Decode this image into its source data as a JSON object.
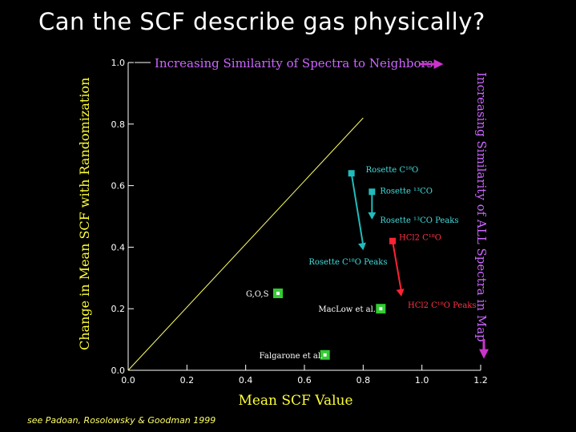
{
  "slide": {
    "title": "Can the SCF describe gas physically?",
    "footnote": "see Padoan, Rosolowsky & Goodman 1999"
  },
  "chart_data": {
    "type": "scatter",
    "xlabel": "Mean SCF Value",
    "ylabel": "Change in Mean SCF with Randomization",
    "xlim": [
      0.0,
      1.2
    ],
    "ylim": [
      0.0,
      1.0
    ],
    "xticks": [
      0.0,
      0.2,
      0.4,
      0.6,
      0.8,
      1.0,
      1.2
    ],
    "yticks": [
      0.0,
      0.2,
      0.4,
      0.6,
      0.8,
      1.0
    ],
    "xtick_labels": [
      "0.0",
      "0.2",
      "0.4",
      "0.6",
      "0.8",
      "1.0",
      "1.2"
    ],
    "ytick_labels": [
      "0.0",
      "0.2",
      "0.4",
      "0.6",
      "0.8",
      "1.0"
    ],
    "grid": false,
    "reference_line": {
      "from": [
        0.0,
        0.0
      ],
      "to": [
        0.8,
        0.82
      ],
      "color": "#ffff66"
    },
    "top_annotation": {
      "text": "Increasing Similarity of Spectra to Neighbors",
      "color": "#cc66ff"
    },
    "right_annotation": {
      "text": "Increasing Similarity of ALL Spectra in Map",
      "color": "#cc66ff"
    },
    "points": [
      {
        "label": "G,O,S",
        "x": 0.51,
        "y": 0.25,
        "color": "#33cc33"
      },
      {
        "label": "MacLow et al.",
        "x": 0.86,
        "y": 0.2,
        "color": "#33cc33"
      },
      {
        "label": "Falgarone et al.",
        "x": 0.67,
        "y": 0.05,
        "color": "#33cc33"
      }
    ],
    "arrows": [
      {
        "from_label": "Rosette C¹⁸O",
        "to_label": "Rosette C¹⁸O Peaks",
        "from": [
          0.76,
          0.64
        ],
        "to": [
          0.8,
          0.39
        ],
        "color": "#22bbbb"
      },
      {
        "from_label": "Rosette ¹³CO",
        "to_label": "Rosette ¹³CO Peaks",
        "from": [
          0.83,
          0.58
        ],
        "to": [
          0.83,
          0.49
        ],
        "color": "#22bbbb"
      },
      {
        "from_label": "HCl2 C¹⁸O",
        "to_label": "HCl2 C¹⁸O Peaks",
        "from": [
          0.9,
          0.42
        ],
        "to": [
          0.93,
          0.24
        ],
        "color": "#ff2233"
      }
    ]
  }
}
